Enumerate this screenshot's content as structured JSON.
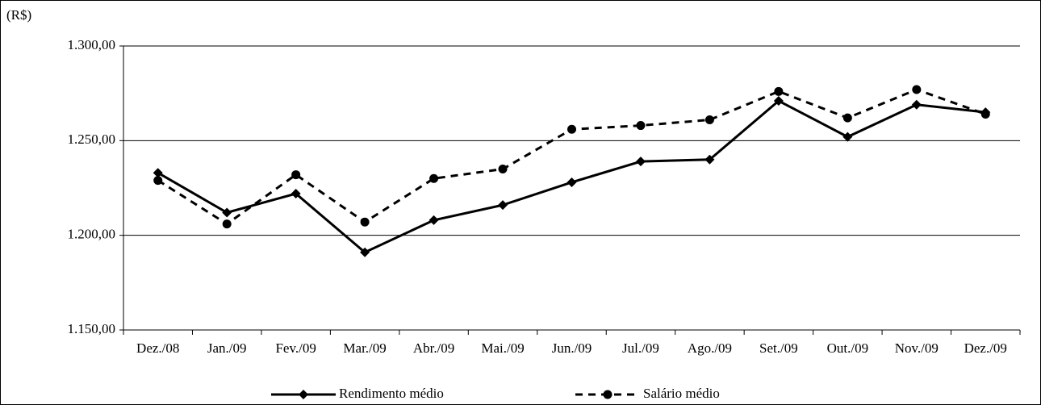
{
  "chart_data": {
    "type": "line",
    "y_label": "(R$)",
    "categories": [
      "Dez./08",
      "Jan./09",
      "Fev./09",
      "Mar./09",
      "Abr./09",
      "Mai./09",
      "Jun./09",
      "Jul./09",
      "Ago./09",
      "Set./09",
      "Out./09",
      "Nov./09",
      "Dez./09"
    ],
    "series": [
      {
        "name": "Rendimento médio",
        "color": "#000000",
        "dash": "solid",
        "marker": "diamond",
        "values": [
          1233,
          1212,
          1222,
          1191,
          1208,
          1216,
          1228,
          1239,
          1240,
          1271,
          1252,
          1269,
          1265
        ]
      },
      {
        "name": "Salário médio",
        "color": "#000000",
        "dash": "dashed",
        "marker": "circle",
        "values": [
          1229,
          1206,
          1232,
          1207,
          1230,
          1235,
          1256,
          1258,
          1261,
          1276,
          1262,
          1277,
          1264
        ]
      }
    ],
    "ylim": [
      1150,
      1300
    ],
    "yticks": [
      {
        "value": 1150,
        "label": "1.150,00"
      },
      {
        "value": 1200,
        "label": "1.200,00"
      },
      {
        "value": 1250,
        "label": "1.250,00"
      },
      {
        "value": 1300,
        "label": "1.300,00"
      }
    ],
    "grid": true,
    "legend": "bottom"
  }
}
